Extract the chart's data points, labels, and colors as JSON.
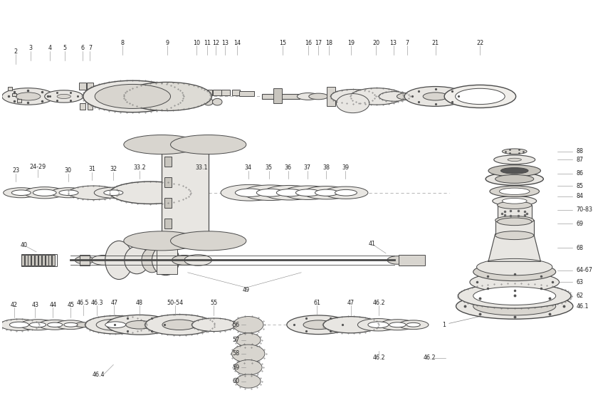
{
  "bg_color": "#ffffff",
  "line_color": "#4a4a4a",
  "fill_light": "#e8e6e2",
  "fill_mid": "#d8d5cf",
  "fill_dark": "#c8c5be",
  "text_color": "#222222",
  "figsize": [
    8.33,
    5.83
  ],
  "dpi": 100
}
